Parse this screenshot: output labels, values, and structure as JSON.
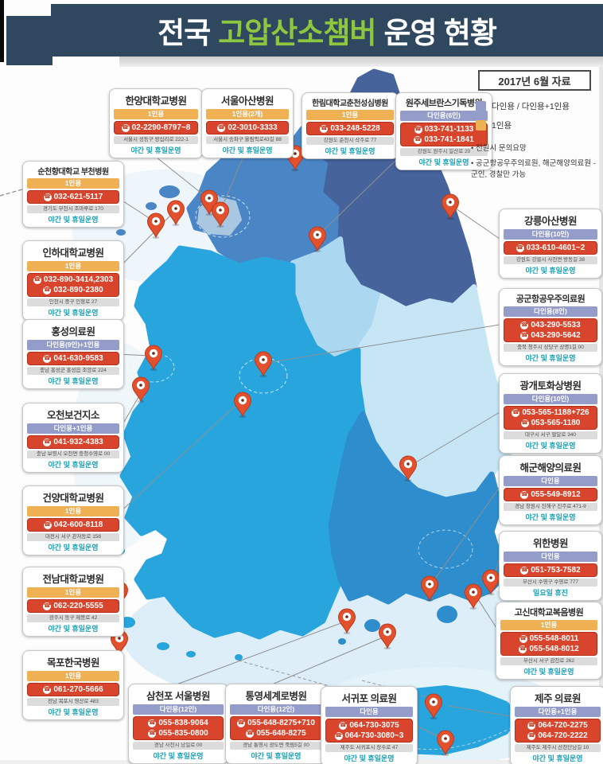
{
  "header": {
    "title_prefix": "전국",
    "title_highlight": "고압산소챔버",
    "title_suffix": "운영 현황",
    "highlight_color": "#8dc63f",
    "banner_color": "#2f4860"
  },
  "info": {
    "date_box": "2017년 6월 자료",
    "legend": [
      {
        "label": "다인용 / 다인용+1인용",
        "color": "#949cc9"
      },
      {
        "label": "1인용",
        "color": "#f0b054"
      }
    ],
    "notes": [
      "전원시 문의요망",
      "공군항공우주의료원, 해군해양의료원 - 군인, 경찰만 가능"
    ]
  },
  "badge_colors": {
    "single": "#f0b054",
    "multi": "#949cc9"
  },
  "phone_band_color": "#d9442c",
  "footer_color": "#18a0b4",
  "hospitals": [
    {
      "name": "한양대학교병원",
      "capacity": "1인용",
      "kind": "single",
      "phones": [
        "02-2290-8797~8"
      ],
      "address": "서울시 성동구 왕십리로 222-1",
      "footer": "야간 및 휴일운영"
    },
    {
      "name": "서울아산병원",
      "capacity": "1인용(2개)",
      "kind": "single",
      "phones": [
        "02-3010-3333"
      ],
      "address": "서울시 송파구 올림픽로43길 88",
      "footer": "야간 및 휴일운영"
    },
    {
      "name": "한림대학교춘천성심병원",
      "capacity": "1인용",
      "kind": "single",
      "phones": [
        "033-248-5228"
      ],
      "address": "강원도 춘천시 삭주로 77",
      "footer": "야간 및 휴일운영"
    },
    {
      "name": "원주세브란스기독병원",
      "capacity": "다인용(6인)",
      "kind": "multi",
      "phones": [
        "033-741-1133",
        "033-741-1841"
      ],
      "address": "강원도 원주시 일산로 20",
      "footer": "야간 및 휴일운영"
    },
    {
      "name": "순천향대학교 부천병원",
      "capacity": "1인용",
      "kind": "single",
      "phones": [
        "032-621-5117"
      ],
      "address": "경기도 부천시 조마루로 170",
      "footer": "야간 및 휴일운영"
    },
    {
      "name": "인하대학교병원",
      "capacity": "1인용",
      "kind": "single",
      "phones": [
        "032-890-3414,2303",
        "032-890-2380"
      ],
      "address": "인천시 중구 인항로 27",
      "footer": "야간 및 휴일운영"
    },
    {
      "name": "홍성의료원",
      "capacity": "다인용(9인)+1인용",
      "kind": "multi",
      "phones": [
        "041-630-9583"
      ],
      "address": "충남 홍성군 홍성읍 조양로 224",
      "footer": "야간 및 휴일운영"
    },
    {
      "name": "오천보건지소",
      "capacity": "다인용+1인용",
      "kind": "multi",
      "phones": [
        "041-932-4383"
      ],
      "address": "충남 보령시 오천면 충청수영로 00",
      "footer": "야간 및 휴일운영"
    },
    {
      "name": "건양대학교병원",
      "capacity": "1인용",
      "kind": "single",
      "phones": [
        "042-600-8118"
      ],
      "address": "대전시 서구 관저동로 158",
      "footer": "야간 및 휴일운영"
    },
    {
      "name": "전남대학교병원",
      "capacity": "1인용",
      "kind": "single",
      "phones": [
        "062-220-5555"
      ],
      "address": "광주시 동구 제봉로 42",
      "footer": "야간 및 휴일운영"
    },
    {
      "name": "목포한국병원",
      "capacity": "1인용",
      "kind": "single",
      "phones": [
        "061-270-5666"
      ],
      "address": "전남 목포시 영산로 483",
      "footer": "야간 및 휴일운영"
    },
    {
      "name": "강릉아산병원",
      "capacity": "다인용(10인)",
      "kind": "multi",
      "phones": [
        "033-610-4601~2"
      ],
      "address": "강원도 강릉시 사천면 방동길 38",
      "footer": "야간 및 휴일운영"
    },
    {
      "name": "공군항공우주의료원",
      "capacity": "다인용(8인)",
      "kind": "multi",
      "phones": [
        "043-290-5533",
        "043-290-5642"
      ],
      "address": "충북 청주시 상당구 상명1길 00",
      "footer": "야간 및 휴일운영"
    },
    {
      "name": "광개토화상병원",
      "capacity": "다인용(10인)",
      "kind": "multi",
      "phones": [
        "053-565-1188+726",
        "053-565-1180"
      ],
      "address": "대구시 서구 팔달로 340",
      "footer": "야간 및 휴일운영"
    },
    {
      "name": "해군해양의료원",
      "capacity": "다인용",
      "kind": "multi",
      "phones": [
        "055-549-8912"
      ],
      "address": "경남 창원시 진해구 진주로 471-9",
      "footer": "야간 및 휴일운영"
    },
    {
      "name": "위한병원",
      "capacity": "다인용",
      "kind": "multi",
      "phones": [
        "051-753-7582"
      ],
      "address": "부산시 수영구 수영로 777",
      "footer": "일요일 휴진"
    },
    {
      "name": "고신대학교복음병원",
      "capacity": "1인용",
      "kind": "single",
      "phones": [
        "055-548-8011",
        "055-548-8012"
      ],
      "address": "부산시 서구 감천로 262",
      "footer": "야간 및 휴일운영"
    },
    {
      "name": "삼천포 서울병원",
      "capacity": "다인용(12인)",
      "kind": "multi",
      "phones": [
        "055-838-9064",
        "055-835-0800"
      ],
      "address": "경남 사천시 남일로 00",
      "footer": "야간 및 휴일운영"
    },
    {
      "name": "통영세계로병원",
      "capacity": "다인용(12인)",
      "kind": "multi",
      "phones": [
        "055-648-8275+710",
        "055-648-8275"
      ],
      "address": "경남 통영시 광도면 죽림5길 00",
      "footer": "야간 및 휴일운영"
    },
    {
      "name": "서귀포 의료원",
      "capacity": "다인용",
      "kind": "multi",
      "phones": [
        "064-730-3075",
        "064-730-3080~3"
      ],
      "address": "제주도 서귀포시 장수로 47",
      "footer": "야간 및 휴일운영"
    },
    {
      "name": "제주 의료원",
      "capacity": "다인용+1인용",
      "kind": "multi",
      "phones": [
        "064-720-2275",
        "064-720-2222"
      ],
      "address": "제주도 제주시 산천단남길 10",
      "footer": "야간 및 휴일운영"
    }
  ]
}
